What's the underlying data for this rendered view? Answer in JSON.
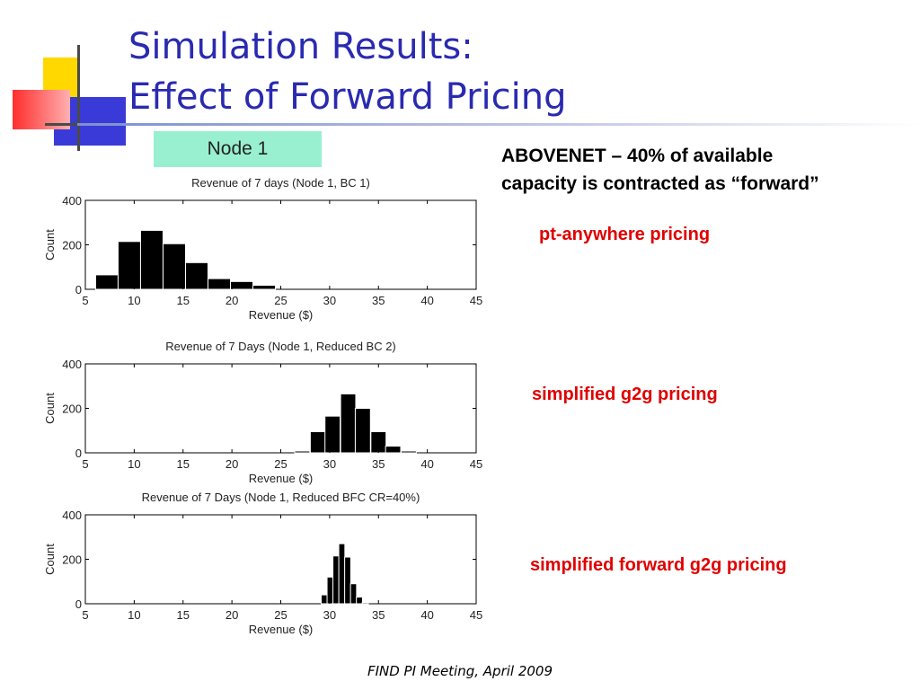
{
  "slide": {
    "title_line1": "Simulation Results:",
    "title_line2": "Effect of Forward Pricing",
    "node_label": "Node 1",
    "description_line1": "ABOVENET – 40% of available",
    "description_line2": "capacity is contracted as “forward”",
    "footer": "FIND PI Meeting, April 2009",
    "colors": {
      "title": "#2a2ab0",
      "label_red": "#e00000",
      "node_box": "#99f0d0",
      "bars": "#000000"
    }
  },
  "annotations": [
    {
      "text": "pt-anywhere pricing"
    },
    {
      "text": "simplified g2g pricing"
    },
    {
      "text": "simplified forward g2g pricing"
    }
  ],
  "chart_data": [
    {
      "type": "bar",
      "title": "Revenue of 7 days (Node 1, BC 1)",
      "xlabel": "Revenue ($)",
      "ylabel": "Count",
      "xlim": [
        5,
        45
      ],
      "ylim": [
        0,
        400
      ],
      "xticks": [
        "5",
        "10",
        "15",
        "20",
        "25",
        "30",
        "35",
        "40",
        "45"
      ],
      "yticks": [
        "0",
        "200",
        "400"
      ],
      "bin_width": 2.3,
      "x": [
        7.2,
        9.5,
        11.8,
        14.1,
        16.4,
        18.7,
        21.0,
        23.3
      ],
      "values": [
        65,
        215,
        265,
        205,
        120,
        48,
        35,
        18
      ]
    },
    {
      "type": "bar",
      "title": "Revenue of 7 Days (Node 1, Reduced BC 2)",
      "xlabel": "Revenue ($)",
      "ylabel": "Count",
      "xlim": [
        5,
        45
      ],
      "ylim": [
        0,
        400
      ],
      "xticks": [
        "5",
        "10",
        "15",
        "20",
        "25",
        "30",
        "35",
        "40",
        "45"
      ],
      "yticks": [
        "0",
        "200",
        "400"
      ],
      "bin_width": 1.55,
      "x": [
        27.2,
        28.8,
        30.3,
        31.9,
        33.4,
        35.0,
        36.5,
        38.1
      ],
      "values": [
        8,
        95,
        165,
        265,
        200,
        95,
        30,
        8
      ]
    },
    {
      "type": "bar",
      "title": "Revenue of 7 Days (Node 1, Reduced BFC CR=40%)",
      "xlabel": "Revenue ($)",
      "ylabel": "Count",
      "xlim": [
        5,
        45
      ],
      "ylim": [
        0,
        400
      ],
      "xticks": [
        "5",
        "10",
        "15",
        "20",
        "25",
        "30",
        "35",
        "40",
        "45"
      ],
      "yticks": [
        "0",
        "200",
        "400"
      ],
      "bin_width": 0.62,
      "x": [
        29.45,
        30.05,
        30.65,
        31.25,
        31.85,
        32.45,
        33.05,
        33.65
      ],
      "values": [
        40,
        120,
        215,
        270,
        210,
        90,
        30,
        5
      ]
    }
  ]
}
